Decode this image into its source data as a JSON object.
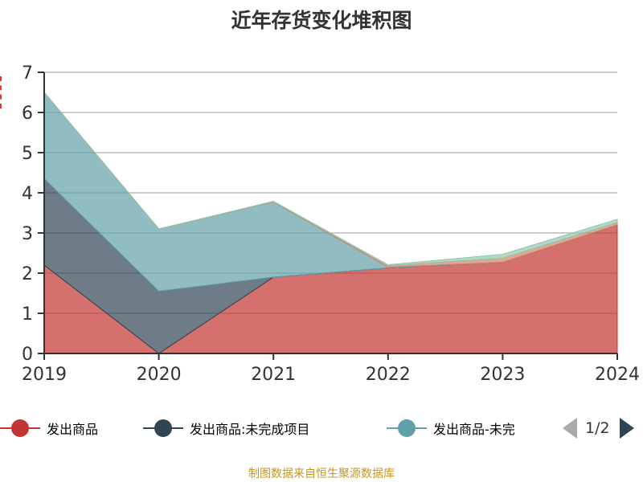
{
  "title": "近年存货变化堆积图",
  "source": "制图数据来自恒生聚源数据库",
  "legend_pager": "1/2",
  "chart_data": {
    "type": "area",
    "stacked": true,
    "categories": [
      "2019",
      "2020",
      "2021",
      "2022",
      "2023",
      "2024"
    ],
    "ylim": [
      0,
      7
    ],
    "yticks": [
      "0",
      "1",
      "2",
      "3",
      "4",
      "5",
      "6",
      "7"
    ],
    "grid": true,
    "legend_placement": "bottom",
    "series": [
      {
        "name": "发出商品",
        "color": "#c23531",
        "values": [
          2.2,
          0.0,
          1.9,
          2.13,
          2.27,
          3.2
        ]
      },
      {
        "name": "发出商品:未完成项目",
        "color": "#2f4554",
        "values": [
          2.15,
          1.55,
          0.0,
          0.0,
          0.0,
          0.0
        ]
      },
      {
        "name": "发出商品-未完",
        "color": "#61a0a8",
        "values": [
          2.15,
          1.55,
          1.87,
          0.02,
          0.0,
          0.0
        ]
      },
      {
        "color": "#d48265",
        "values": [
          0.0,
          0.0,
          0.01,
          0.04,
          0.1,
          0.06
        ]
      },
      {
        "color": "#91c7ae",
        "values": [
          0.0,
          0.0,
          0.01,
          0.02,
          0.1,
          0.08
        ]
      }
    ]
  }
}
